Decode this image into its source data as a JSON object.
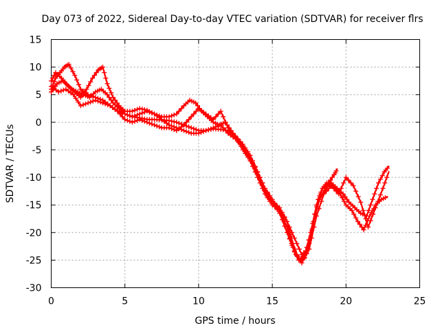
{
  "chart_data": {
    "type": "line",
    "title": "Day 073 of 2022, Sidereal Day-to-day VTEC variation (SDTVAR) for receiver flrs",
    "xlabel": "GPS time / hours",
    "ylabel": "SDTVAR / TECUs",
    "xlim": [
      0,
      25
    ],
    "ylim": [
      -30,
      15
    ],
    "xticks": [
      0,
      5,
      10,
      15,
      20,
      25
    ],
    "yticks": [
      15,
      10,
      5,
      0,
      -5,
      -10,
      -15,
      -20,
      -25,
      -30
    ],
    "grid": true,
    "legend": "none",
    "color": "#ff0000",
    "marker": "plus",
    "series": [
      {
        "name": "track-1",
        "x": [
          0.0,
          0.3,
          0.6,
          0.9,
          1.2,
          1.6,
          2.0,
          2.5,
          3.0,
          3.5,
          4.0,
          4.5,
          5.0,
          5.5,
          6.0,
          6.5,
          7.0,
          7.5,
          8.0,
          8.5,
          9.0,
          9.5,
          10.0,
          10.5,
          11.0,
          11.5,
          12.0,
          12.5,
          13.0,
          13.5,
          14.0,
          14.5,
          15.0,
          15.5,
          16.0,
          16.3,
          16.6,
          16.9,
          17.2,
          17.5,
          17.8,
          18.1,
          18.4,
          18.7,
          19.0,
          19.3,
          19.6,
          20.0,
          20.4,
          20.8,
          21.2,
          21.6,
          22.0,
          22.4,
          22.8
        ],
        "y": [
          6.0,
          8.0,
          9.0,
          10.0,
          10.5,
          8.5,
          6.0,
          5.0,
          4.5,
          4.0,
          3.0,
          2.0,
          1.5,
          1.0,
          0.8,
          0.5,
          0.5,
          0.4,
          0.3,
          0.0,
          -0.5,
          -1.0,
          -1.5,
          -1.5,
          -1.2,
          -1.3,
          -1.5,
          -2.5,
          -4.0,
          -6.0,
          -9.0,
          -12.0,
          -14.0,
          -16.0,
          -19.0,
          -22.0,
          -24.0,
          -25.0,
          -24.5,
          -22.0,
          -18.0,
          -14.0,
          -12.0,
          -11.0,
          -11.5,
          -12.0,
          -13.0,
          -15.0,
          -16.0,
          -18.0,
          -19.5,
          -17.0,
          -15.0,
          -14.0,
          -13.5
        ]
      },
      {
        "name": "track-2",
        "x": [
          0.0,
          0.4,
          0.8,
          1.2,
          1.6,
          2.0,
          2.4,
          2.8,
          3.2,
          3.5,
          3.8,
          4.2,
          4.6,
          5.0,
          5.5,
          6.0,
          6.5,
          7.0,
          7.5,
          8.0,
          8.5,
          9.0,
          9.5,
          10.0,
          10.5,
          11.0,
          11.5,
          12.0,
          12.5,
          13.0,
          13.5,
          14.0,
          14.5,
          15.0,
          15.5,
          16.0,
          16.4,
          16.8,
          17.2,
          17.6,
          18.0,
          18.4,
          18.8,
          19.2,
          19.4
        ],
        "y": [
          5.5,
          7.0,
          7.5,
          6.5,
          5.5,
          4.5,
          6.0,
          8.0,
          9.5,
          10.0,
          7.0,
          4.5,
          3.0,
          2.0,
          2.0,
          2.5,
          2.2,
          1.5,
          0.5,
          -0.5,
          -1.0,
          -1.5,
          -2.0,
          -2.0,
          -1.5,
          -1.0,
          -0.5,
          -2.0,
          -3.0,
          -4.5,
          -6.5,
          -9.5,
          -12.5,
          -14.5,
          -15.5,
          -18.0,
          -22.0,
          -25.0,
          -24.0,
          -20.0,
          -15.0,
          -12.0,
          -11.0,
          -9.5,
          -8.5
        ]
      },
      {
        "name": "track-3",
        "x": [
          0.0,
          0.3,
          0.7,
          1.0,
          1.4,
          1.8,
          2.2,
          2.6,
          3.0,
          3.4,
          3.8,
          4.2,
          4.6,
          5.0,
          5.5,
          6.0,
          6.5,
          7.0,
          7.5,
          8.0,
          8.5,
          9.0,
          9.4,
          9.8,
          10.2,
          10.6,
          11.0,
          11.4,
          11.8,
          12.2,
          12.6,
          13.0,
          13.5,
          14.0,
          14.5,
          15.0,
          15.5,
          16.0,
          16.5,
          17.0,
          17.4,
          17.8,
          18.2,
          18.6,
          19.0,
          19.4,
          19.8,
          20.2,
          20.6,
          21.0,
          21.4,
          21.8,
          22.2,
          22.6,
          22.9
        ],
        "y": [
          7.5,
          9.0,
          8.0,
          7.0,
          6.0,
          5.5,
          5.0,
          4.5,
          5.5,
          6.0,
          5.0,
          3.5,
          2.5,
          1.5,
          1.0,
          1.5,
          2.0,
          1.5,
          1.0,
          1.0,
          1.5,
          3.0,
          4.0,
          3.5,
          2.0,
          1.0,
          0.0,
          -0.5,
          0.0,
          -1.5,
          -3.0,
          -5.0,
          -7.0,
          -10.0,
          -13.0,
          -15.0,
          -16.0,
          -18.0,
          -21.0,
          -24.0,
          -23.0,
          -18.0,
          -14.0,
          -12.0,
          -11.0,
          -12.0,
          -13.0,
          -14.5,
          -15.5,
          -16.5,
          -17.0,
          -14.0,
          -11.0,
          -9.0,
          -8.0
        ]
      },
      {
        "name": "track-4",
        "x": [
          0.0,
          0.5,
          1.0,
          1.5,
          2.0,
          2.5,
          3.0,
          3.5,
          4.0,
          4.5,
          5.0,
          5.5,
          6.0,
          6.5,
          7.0,
          7.5,
          8.0,
          8.5,
          9.0,
          9.5,
          10.0,
          10.5,
          11.0,
          11.5,
          12.0,
          12.5,
          13.0,
          13.5,
          14.0,
          14.5,
          15.0,
          15.5,
          16.0,
          16.5,
          17.0,
          17.5,
          18.0,
          18.5,
          19.0,
          19.5,
          20.0,
          20.5,
          21.0,
          21.5,
          22.0,
          22.5,
          22.9
        ],
        "y": [
          6.5,
          5.5,
          6.0,
          5.0,
          3.0,
          3.5,
          4.0,
          3.5,
          3.0,
          2.0,
          0.5,
          0.0,
          0.5,
          0.0,
          -0.5,
          -1.0,
          -1.0,
          -1.5,
          -0.5,
          1.0,
          2.5,
          1.5,
          0.5,
          2.0,
          -1.0,
          -2.5,
          -4.5,
          -6.5,
          -9.0,
          -12.0,
          -14.5,
          -16.5,
          -20.0,
          -23.5,
          -25.5,
          -23.0,
          -17.0,
          -13.0,
          -11.5,
          -13.0,
          -10.0,
          -11.5,
          -14.5,
          -19.0,
          -15.5,
          -12.0,
          -9.0
        ]
      }
    ]
  }
}
